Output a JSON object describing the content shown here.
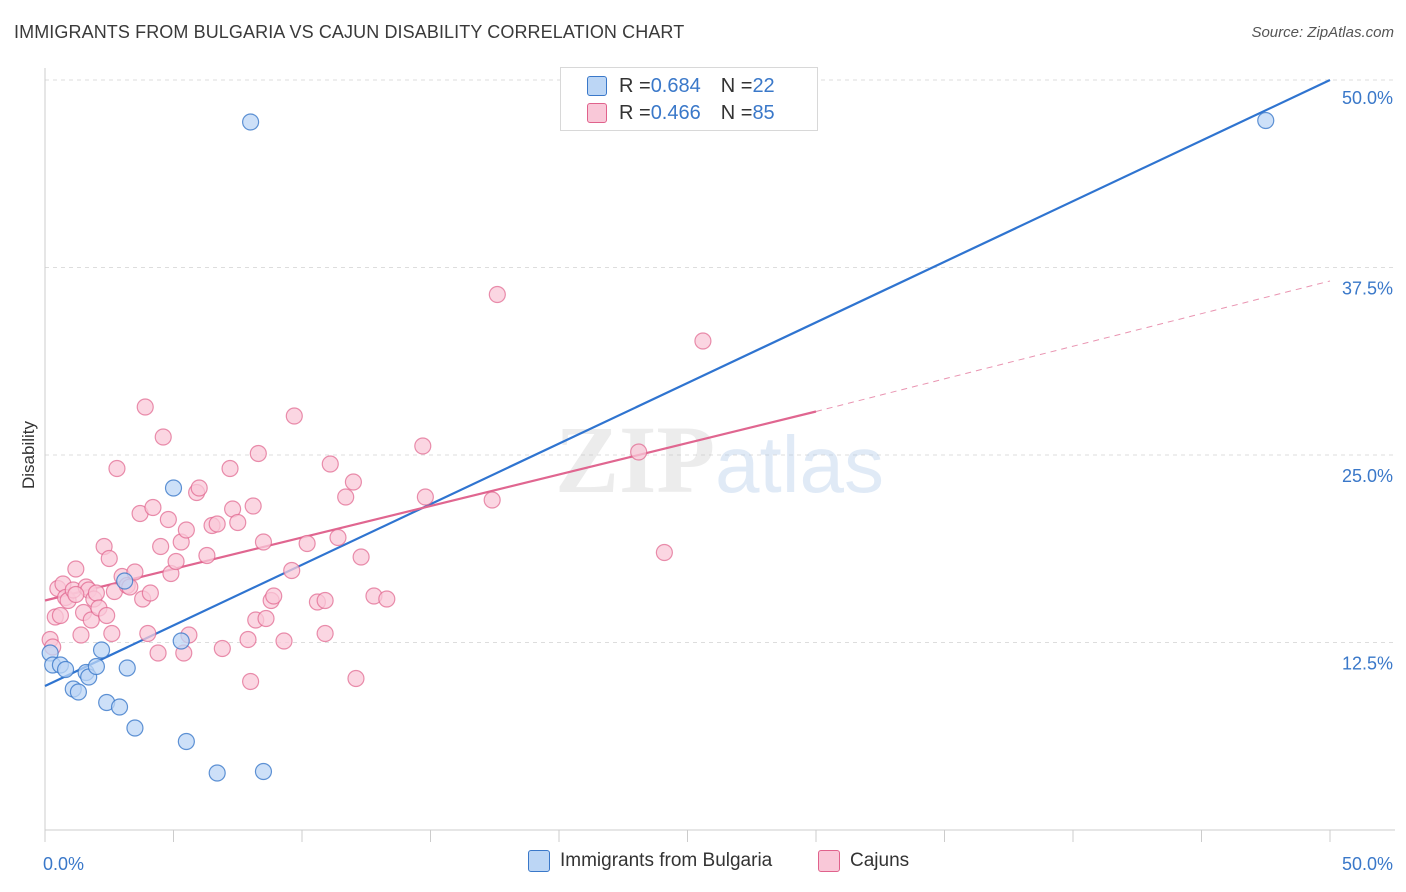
{
  "title": "IMMIGRANTS FROM BULGARIA VS CAJUN DISABILITY CORRELATION CHART",
  "source": "Source: ZipAtlas.com",
  "colors": {
    "blue": "#3a78c9",
    "blue_fill": "#bcd6f5",
    "blue_line": "#2f74d0",
    "pink": "#e0628c",
    "pink_fill": "#f9c8d8",
    "pink_line": "#e06690",
    "grid": "#dddddd",
    "axis_text": "#3a78c9"
  },
  "legend_top": {
    "rows": [
      {
        "r_label": "R = ",
        "r_value": "0.684",
        "n_label": "N = ",
        "n_value": "22"
      },
      {
        "r_label": "R = ",
        "r_value": "0.466",
        "n_label": "N = ",
        "n_value": "85"
      }
    ]
  },
  "legend_bottom": {
    "series1": "Immigrants from Bulgaria",
    "series2": "Cajuns"
  },
  "watermark": {
    "zip": "ZIP",
    "atlas": "atlas"
  },
  "chart_data": {
    "type": "scatter",
    "title": "IMMIGRANTS FROM BULGARIA VS CAJUN DISABILITY CORRELATION CHART",
    "xlabel": "",
    "ylabel": "Disability",
    "xlim": [
      0,
      50
    ],
    "ylim": [
      0,
      50
    ],
    "x_tick_labels": [
      "0.0%",
      "50.0%"
    ],
    "y_ticks": [
      12.5,
      25.0,
      37.5,
      50.0
    ],
    "y_tick_labels": [
      "12.5%",
      "25.0%",
      "37.5%",
      "50.0%"
    ],
    "legend_position": "top-center",
    "series": [
      {
        "name": "Immigrants from Bulgaria",
        "R": 0.684,
        "N": 22,
        "points": [
          [
            0.2,
            11.8
          ],
          [
            0.3,
            11.0
          ],
          [
            0.6,
            11.0
          ],
          [
            0.8,
            10.7
          ],
          [
            1.1,
            9.4
          ],
          [
            1.3,
            9.2
          ],
          [
            1.6,
            10.5
          ],
          [
            1.7,
            10.2
          ],
          [
            2.0,
            10.9
          ],
          [
            2.2,
            12.0
          ],
          [
            2.4,
            8.5
          ],
          [
            2.9,
            8.2
          ],
          [
            3.1,
            16.6
          ],
          [
            3.2,
            10.8
          ],
          [
            3.5,
            6.8
          ],
          [
            5.0,
            22.8
          ],
          [
            5.3,
            12.6
          ],
          [
            5.5,
            5.9
          ],
          [
            6.7,
            3.8
          ],
          [
            8.0,
            47.2
          ],
          [
            8.5,
            3.9
          ],
          [
            47.5,
            47.3
          ]
        ],
        "trend": {
          "x": [
            0,
            50
          ],
          "y": [
            9.6,
            50.0
          ],
          "style": "solid"
        }
      },
      {
        "name": "Cajuns",
        "R": 0.466,
        "N": 85,
        "points": [
          [
            0.2,
            12.7
          ],
          [
            0.3,
            12.2
          ],
          [
            0.4,
            14.2
          ],
          [
            0.5,
            16.1
          ],
          [
            0.6,
            14.3
          ],
          [
            0.7,
            16.4
          ],
          [
            0.8,
            15.5
          ],
          [
            0.9,
            15.3
          ],
          [
            1.1,
            16.0
          ],
          [
            1.2,
            17.4
          ],
          [
            1.4,
            13.0
          ],
          [
            1.5,
            14.5
          ],
          [
            1.6,
            16.2
          ],
          [
            1.7,
            16.0
          ],
          [
            1.8,
            14.0
          ],
          [
            1.9,
            15.4
          ],
          [
            2.0,
            15.8
          ],
          [
            2.1,
            14.8
          ],
          [
            2.3,
            18.9
          ],
          [
            2.4,
            14.3
          ],
          [
            2.5,
            18.1
          ],
          [
            2.6,
            13.1
          ],
          [
            2.7,
            15.9
          ],
          [
            2.8,
            24.1
          ],
          [
            3.0,
            16.9
          ],
          [
            3.2,
            16.3
          ],
          [
            3.3,
            16.2
          ],
          [
            3.5,
            17.2
          ],
          [
            3.7,
            21.1
          ],
          [
            3.8,
            15.4
          ],
          [
            3.9,
            28.2
          ],
          [
            4.0,
            13.1
          ],
          [
            4.1,
            15.8
          ],
          [
            4.2,
            21.5
          ],
          [
            4.4,
            11.8
          ],
          [
            4.5,
            18.9
          ],
          [
            4.6,
            26.2
          ],
          [
            4.8,
            20.7
          ],
          [
            4.9,
            17.1
          ],
          [
            5.1,
            17.9
          ],
          [
            5.3,
            19.2
          ],
          [
            5.4,
            11.8
          ],
          [
            5.5,
            20.0
          ],
          [
            5.6,
            13.0
          ],
          [
            5.9,
            22.5
          ],
          [
            6.0,
            22.8
          ],
          [
            6.3,
            18.3
          ],
          [
            6.5,
            20.3
          ],
          [
            6.7,
            20.4
          ],
          [
            6.9,
            12.1
          ],
          [
            7.2,
            24.1
          ],
          [
            7.3,
            21.4
          ],
          [
            7.5,
            20.5
          ],
          [
            7.9,
            12.7
          ],
          [
            8.0,
            9.9
          ],
          [
            8.1,
            21.6
          ],
          [
            8.2,
            14.0
          ],
          [
            8.3,
            25.1
          ],
          [
            8.5,
            19.2
          ],
          [
            8.6,
            14.1
          ],
          [
            8.8,
            15.3
          ],
          [
            8.9,
            15.6
          ],
          [
            9.3,
            12.6
          ],
          [
            9.6,
            17.3
          ],
          [
            9.7,
            27.6
          ],
          [
            10.2,
            19.1
          ],
          [
            10.6,
            15.2
          ],
          [
            10.9,
            15.3
          ],
          [
            10.9,
            13.1
          ],
          [
            11.1,
            24.4
          ],
          [
            11.4,
            19.5
          ],
          [
            11.7,
            22.2
          ],
          [
            12.0,
            23.2
          ],
          [
            12.1,
            10.1
          ],
          [
            12.3,
            18.2
          ],
          [
            12.8,
            15.6
          ],
          [
            13.3,
            15.4
          ],
          [
            14.7,
            25.6
          ],
          [
            14.8,
            22.2
          ],
          [
            17.4,
            22.0
          ],
          [
            17.6,
            35.7
          ],
          [
            23.1,
            25.2
          ],
          [
            24.1,
            18.5
          ],
          [
            25.6,
            32.6
          ],
          [
            1.2,
            15.7
          ]
        ],
        "trend": {
          "x": [
            0,
            30
          ],
          "y": [
            15.3,
            27.9
          ],
          "style": "solid"
        },
        "trend_extension": {
          "x": [
            30,
            50
          ],
          "y": [
            27.9,
            36.6
          ],
          "style": "dashed"
        }
      }
    ]
  }
}
